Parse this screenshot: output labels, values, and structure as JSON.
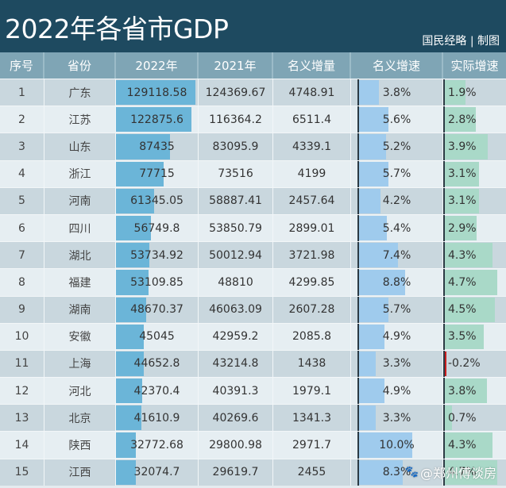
{
  "header": {
    "title": "2022年各省市GDP",
    "credit": "国民经略 | 制图"
  },
  "table": {
    "columns": [
      "序号",
      "省份",
      "2022年",
      "2021年",
      "名义增量",
      "名义增速",
      "实际增速"
    ]
  },
  "watermark": {
    "icon": "weibo-icon",
    "text": "@郑州傅谈房"
  },
  "colors": {
    "title_bg": "#1e4a60",
    "header_bg": "#7fa5b5",
    "gdp_bar": "#6bb5d8",
    "nominal_bar": "#9fcbed",
    "real_bar": "#a9d9c8",
    "negative_bar": "#c81e1e"
  },
  "chart_data": {
    "type": "table",
    "title": "2022年各省市GDP",
    "columns": [
      "序号",
      "省份",
      "2022年",
      "2021年",
      "名义增量",
      "名义增速",
      "实际增速"
    ],
    "rows": [
      {
        "rank": "1",
        "province": "广东",
        "gdp2022": "129118.58",
        "gdp2021": "124369.67",
        "nominal_increase": "4748.91",
        "nominal_growth": "3.8%",
        "real_growth": "1.9%"
      },
      {
        "rank": "2",
        "province": "江苏",
        "gdp2022": "122875.6",
        "gdp2021": "116364.2",
        "nominal_increase": "6511.4",
        "nominal_growth": "5.6%",
        "real_growth": "2.8%"
      },
      {
        "rank": "3",
        "province": "山东",
        "gdp2022": "87435",
        "gdp2021": "83095.9",
        "nominal_increase": "4339.1",
        "nominal_growth": "5.2%",
        "real_growth": "3.9%"
      },
      {
        "rank": "4",
        "province": "浙江",
        "gdp2022": "77715",
        "gdp2021": "73516",
        "nominal_increase": "4199",
        "nominal_growth": "5.7%",
        "real_growth": "3.1%"
      },
      {
        "rank": "5",
        "province": "河南",
        "gdp2022": "61345.05",
        "gdp2021": "58887.41",
        "nominal_increase": "2457.64",
        "nominal_growth": "4.2%",
        "real_growth": "3.1%"
      },
      {
        "rank": "6",
        "province": "四川",
        "gdp2022": "56749.8",
        "gdp2021": "53850.79",
        "nominal_increase": "2899.01",
        "nominal_growth": "5.4%",
        "real_growth": "2.9%"
      },
      {
        "rank": "7",
        "province": "湖北",
        "gdp2022": "53734.92",
        "gdp2021": "50012.94",
        "nominal_increase": "3721.98",
        "nominal_growth": "7.4%",
        "real_growth": "4.3%"
      },
      {
        "rank": "8",
        "province": "福建",
        "gdp2022": "53109.85",
        "gdp2021": "48810",
        "nominal_increase": "4299.85",
        "nominal_growth": "8.8%",
        "real_growth": "4.7%"
      },
      {
        "rank": "9",
        "province": "湖南",
        "gdp2022": "48670.37",
        "gdp2021": "46063.09",
        "nominal_increase": "2607.28",
        "nominal_growth": "5.7%",
        "real_growth": "4.5%"
      },
      {
        "rank": "10",
        "province": "安徽",
        "gdp2022": "45045",
        "gdp2021": "42959.2",
        "nominal_increase": "2085.8",
        "nominal_growth": "4.9%",
        "real_growth": "3.5%"
      },
      {
        "rank": "11",
        "province": "上海",
        "gdp2022": "44652.8",
        "gdp2021": "43214.8",
        "nominal_increase": "1438",
        "nominal_growth": "3.3%",
        "real_growth": "-0.2%"
      },
      {
        "rank": "12",
        "province": "河北",
        "gdp2022": "42370.4",
        "gdp2021": "40391.3",
        "nominal_increase": "1979.1",
        "nominal_growth": "4.9%",
        "real_growth": "3.8%"
      },
      {
        "rank": "13",
        "province": "北京",
        "gdp2022": "41610.9",
        "gdp2021": "40269.6",
        "nominal_increase": "1341.3",
        "nominal_growth": "3.3%",
        "real_growth": "0.7%"
      },
      {
        "rank": "14",
        "province": "陕西",
        "gdp2022": "32772.68",
        "gdp2021": "29800.98",
        "nominal_increase": "2971.7",
        "nominal_growth": "10.0%",
        "real_growth": "4.3%"
      },
      {
        "rank": "15",
        "province": "江西",
        "gdp2022": "32074.7",
        "gdp2021": "29619.7",
        "nominal_increase": "2455",
        "nominal_growth": "8.3%",
        "real_growth": "4.7%"
      }
    ],
    "bar_columns": {
      "gdp2022": {
        "max": 129118.58
      },
      "nominal_growth": {
        "max": 10.0
      },
      "real_growth": {
        "max": 4.7
      }
    }
  }
}
